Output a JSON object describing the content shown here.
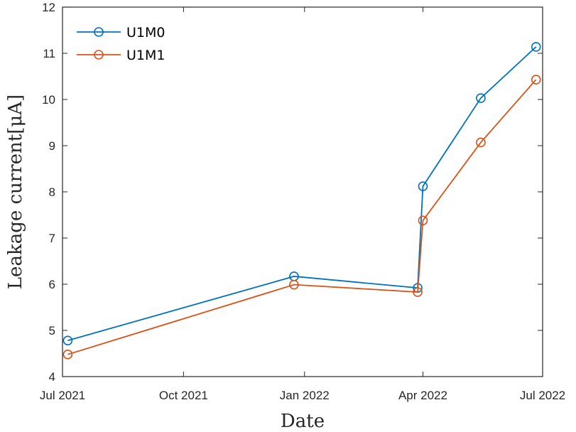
{
  "chart_data": {
    "type": "line",
    "xlabel": "Date",
    "ylabel": "Leakage current[μA]",
    "x_ticks": [
      "2021-07-01",
      "2021-10-01",
      "2022-01-01",
      "2022-04-01",
      "2022-07-01"
    ],
    "x_tick_labels": [
      "Jul 2021",
      "Oct 2021",
      "Jan 2022",
      "Apr 2022",
      "Jul 2022"
    ],
    "xlim": [
      "2021-07-01",
      "2022-07-01"
    ],
    "ylim": [
      4,
      12
    ],
    "y_ticks": [
      4,
      5,
      6,
      7,
      8,
      9,
      10,
      11,
      12
    ],
    "grid": false,
    "legend_position": "top-left",
    "series": [
      {
        "name": "U1M0",
        "color": "#0072BD",
        "marker": "circle",
        "points": [
          {
            "x": "2021-07-05",
            "y": 4.78
          },
          {
            "x": "2021-12-24",
            "y": 6.17
          },
          {
            "x": "2022-03-28",
            "y": 5.92
          },
          {
            "x": "2022-04-01",
            "y": 8.12
          },
          {
            "x": "2022-05-15",
            "y": 10.03
          },
          {
            "x": "2022-06-26",
            "y": 11.14
          }
        ]
      },
      {
        "name": "U1M1",
        "color": "#D95319",
        "marker": "circle",
        "points": [
          {
            "x": "2021-07-05",
            "y": 4.48
          },
          {
            "x": "2021-12-24",
            "y": 5.99
          },
          {
            "x": "2022-03-28",
            "y": 5.83
          },
          {
            "x": "2022-04-01",
            "y": 7.38
          },
          {
            "x": "2022-05-15",
            "y": 9.07
          },
          {
            "x": "2022-06-26",
            "y": 10.43
          }
        ]
      }
    ]
  }
}
